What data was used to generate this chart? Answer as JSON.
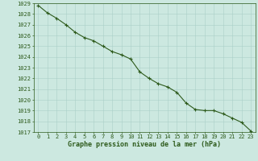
{
  "x": [
    0,
    1,
    2,
    3,
    4,
    5,
    6,
    7,
    8,
    9,
    10,
    11,
    12,
    13,
    14,
    15,
    16,
    17,
    18,
    19,
    20,
    21,
    22,
    23
  ],
  "y": [
    1028.8,
    1028.1,
    1027.6,
    1027.0,
    1026.3,
    1025.8,
    1025.5,
    1025.0,
    1024.5,
    1024.2,
    1023.8,
    1022.6,
    1022.0,
    1021.5,
    1021.2,
    1020.7,
    1019.7,
    1019.1,
    1019.0,
    1019.0,
    1018.7,
    1018.3,
    1017.9,
    1017.1
  ],
  "line_color": "#2d5a1b",
  "marker": "+",
  "marker_size": 3.5,
  "line_width": 0.8,
  "bg_color": "#cce8e0",
  "grid_color": "#aacfc8",
  "tick_color": "#2d5a1b",
  "label_color": "#2d5a1b",
  "xlabel": "Graphe pression niveau de la mer (hPa)",
  "xlabel_fontsize": 6.0,
  "xlabel_fontweight": "bold",
  "ylim_min": 1017,
  "ylim_max": 1029,
  "ytick_step": 1,
  "xtick_labels": [
    "0",
    "1",
    "2",
    "3",
    "4",
    "5",
    "6",
    "7",
    "8",
    "9",
    "10",
    "11",
    "12",
    "13",
    "14",
    "15",
    "16",
    "17",
    "18",
    "19",
    "20",
    "21",
    "22",
    "23"
  ],
  "tick_fontsize": 5.0
}
